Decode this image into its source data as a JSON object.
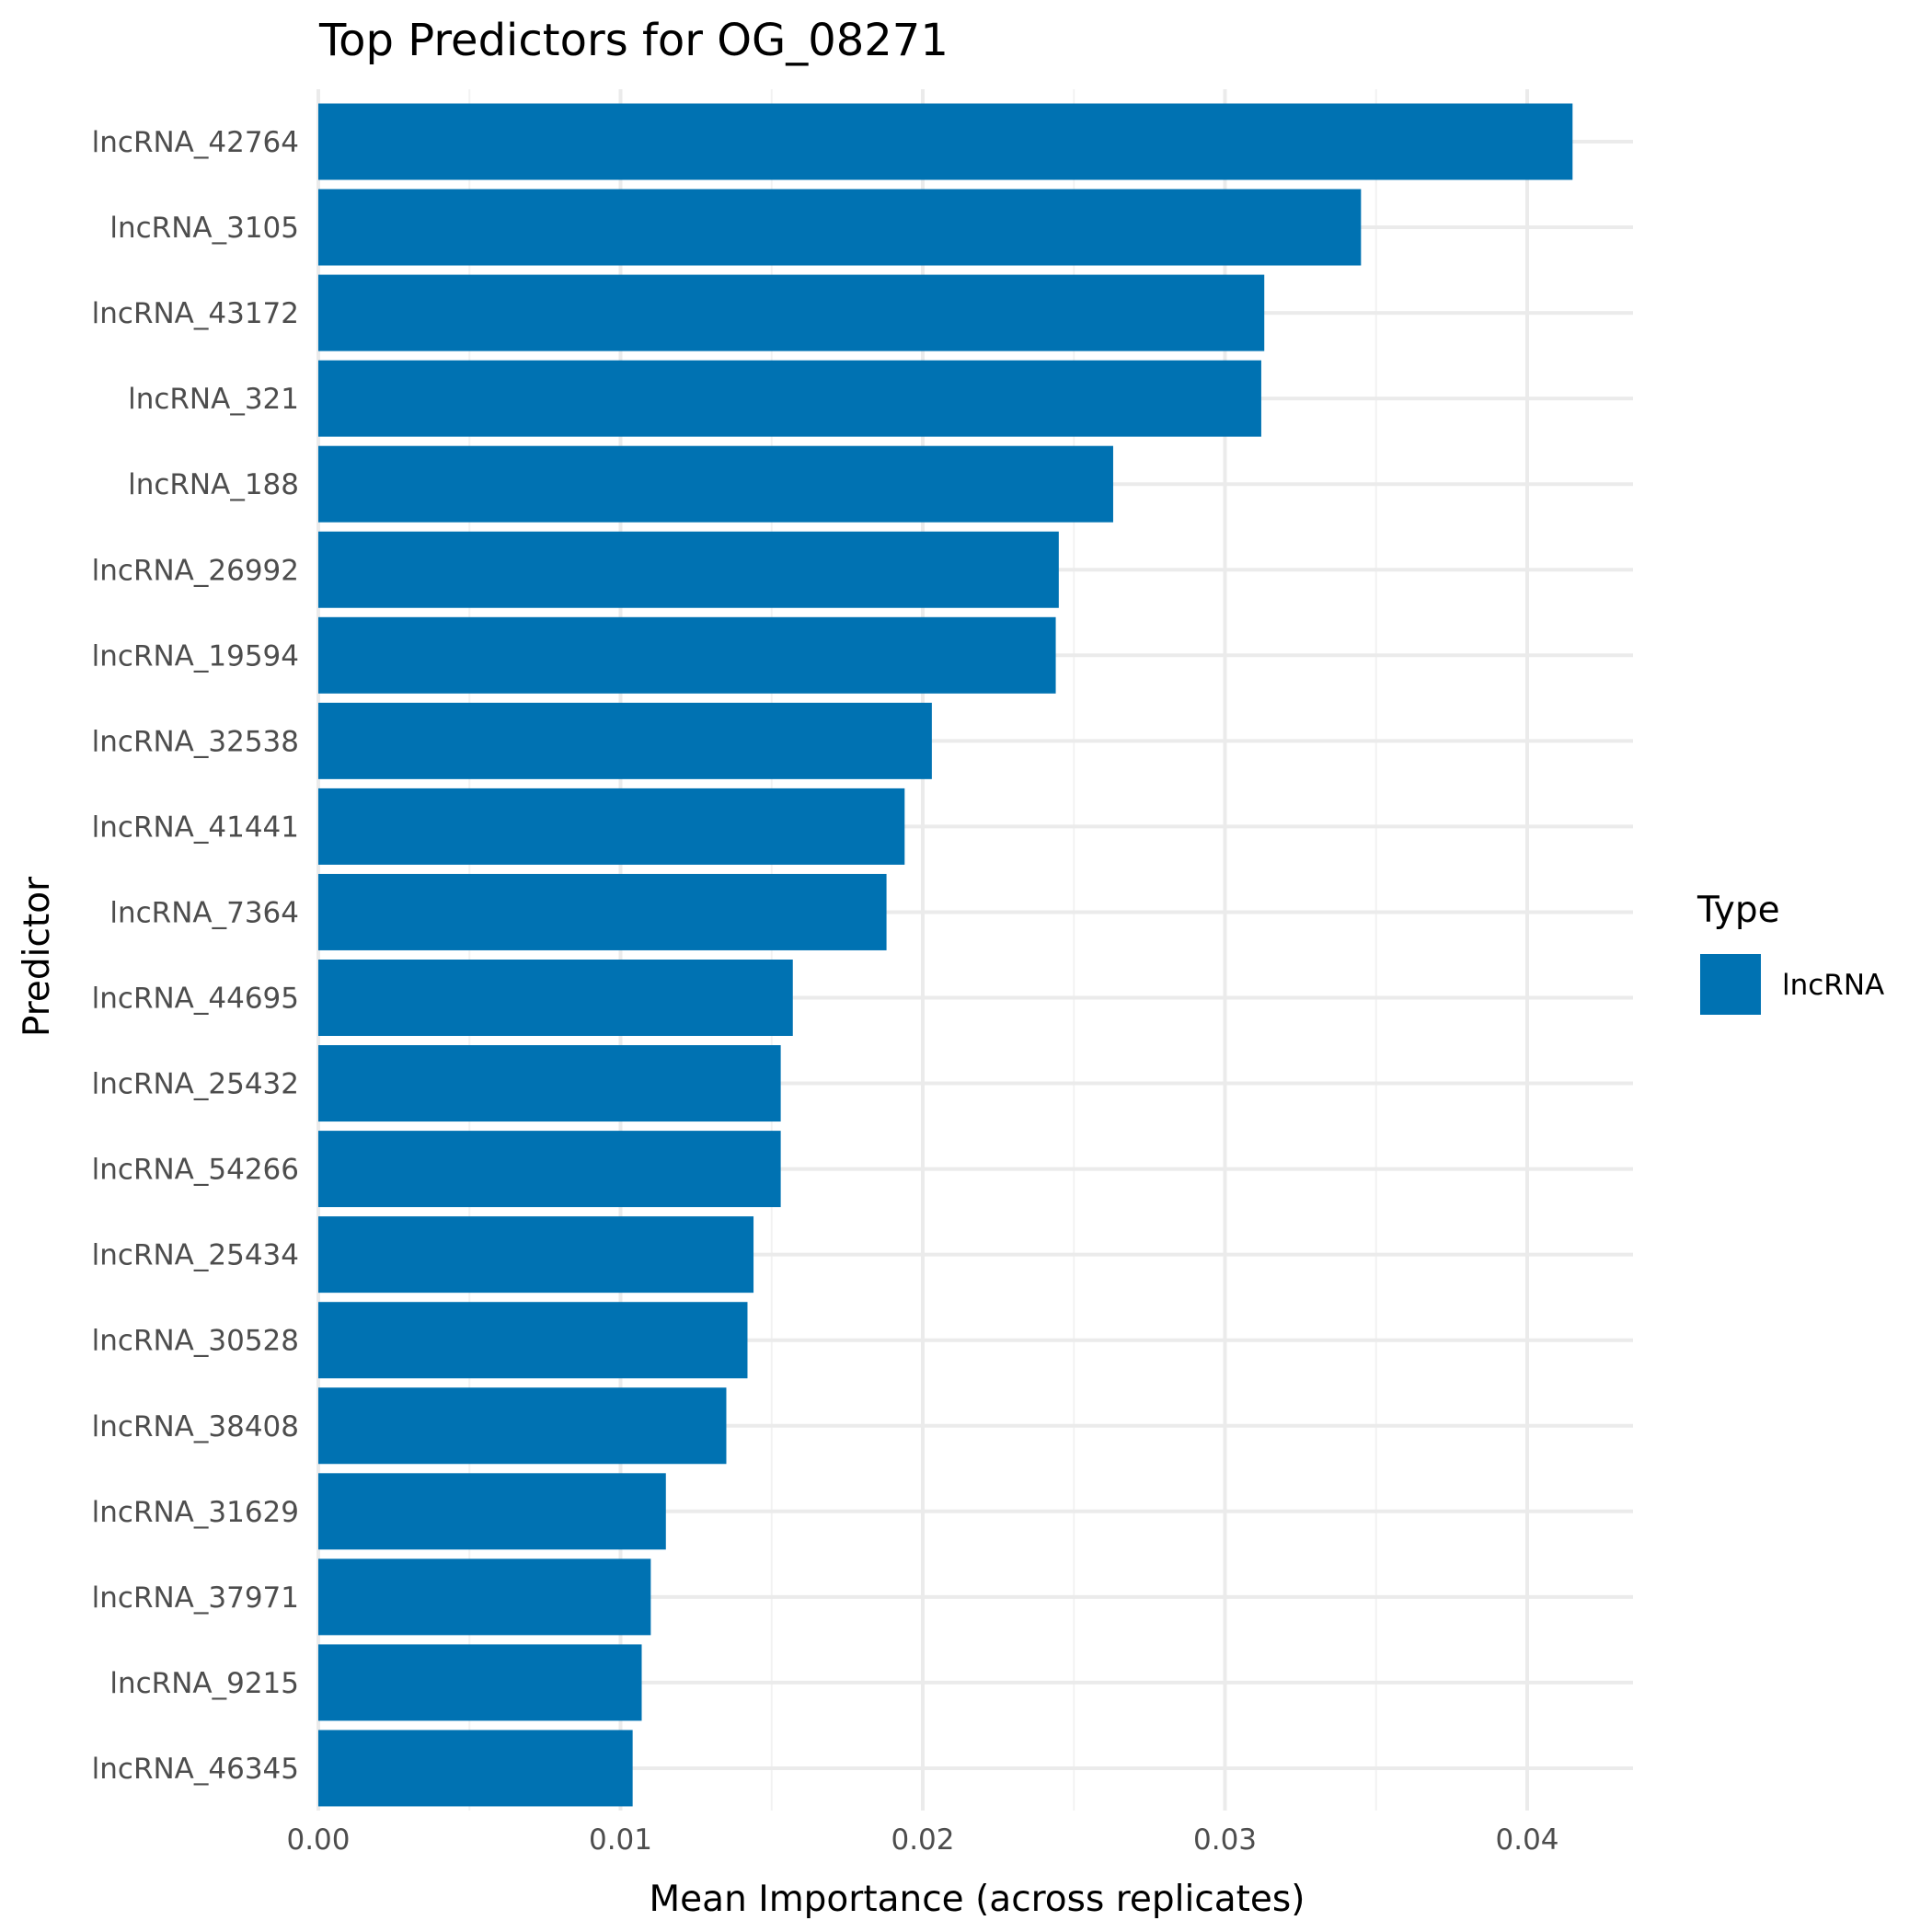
{
  "chart_data": {
    "type": "bar",
    "orientation": "horizontal",
    "title": "Top Predictors for OG_08271",
    "xlabel": "Mean Importance (across replicates)",
    "ylabel": "Predictor",
    "xlim": [
      0,
      0.0435
    ],
    "x_ticks": [
      0.0,
      0.01,
      0.02,
      0.03,
      0.04
    ],
    "x_tick_labels": [
      "0.00",
      "0.01",
      "0.02",
      "0.03",
      "0.04"
    ],
    "grid": true,
    "legend": {
      "title": "Type",
      "position": "right",
      "entries": [
        {
          "label": "lncRNA",
          "color": "#0072B2"
        }
      ]
    },
    "categories": [
      "lncRNA_42764",
      "lncRNA_3105",
      "lncRNA_43172",
      "lncRNA_321",
      "lncRNA_188",
      "lncRNA_26992",
      "lncRNA_19594",
      "lncRNA_32538",
      "lncRNA_41441",
      "lncRNA_7364",
      "lncRNA_44695",
      "lncRNA_25432",
      "lncRNA_54266",
      "lncRNA_25434",
      "lncRNA_30528",
      "lncRNA_38408",
      "lncRNA_31629",
      "lncRNA_37971",
      "lncRNA_9215",
      "lncRNA_46345"
    ],
    "series": [
      {
        "name": "lncRNA",
        "color": "#0072B2",
        "values": [
          0.0415,
          0.0345,
          0.0313,
          0.0312,
          0.0263,
          0.0245,
          0.0244,
          0.0203,
          0.0194,
          0.0188,
          0.0157,
          0.0153,
          0.0153,
          0.0144,
          0.0142,
          0.0135,
          0.0115,
          0.011,
          0.0107,
          0.0104
        ]
      }
    ]
  }
}
